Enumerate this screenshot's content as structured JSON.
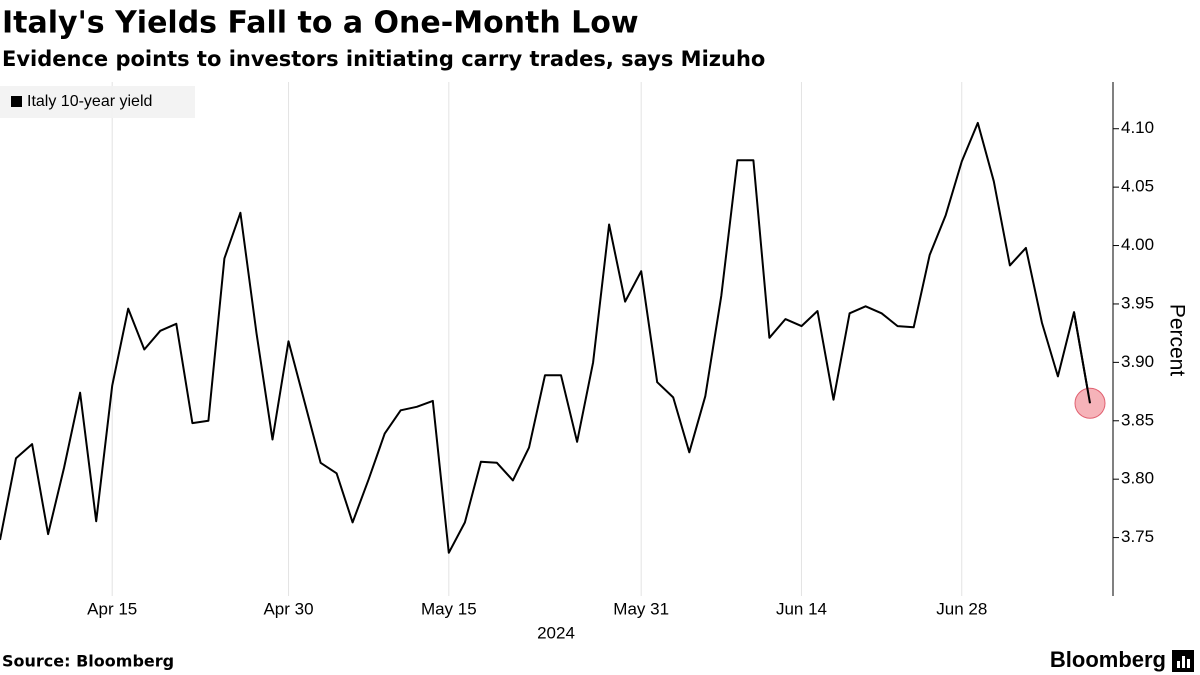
{
  "chart_data": {
    "type": "line",
    "title": "Italy's Yields Fall to a One-Month Low",
    "subtitle": "Evidence points to investors initiating carry trades, says Mizuho",
    "y_axis_label": "Percent",
    "x_axis_label": "2024",
    "source": "Source: Bloomberg",
    "branding": "Bloomberg",
    "x": [
      "2024-04-04",
      "2024-04-05",
      "2024-04-08",
      "2024-04-09",
      "2024-04-10",
      "2024-04-11",
      "2024-04-12",
      "2024-04-15",
      "2024-04-16",
      "2024-04-17",
      "2024-04-18",
      "2024-04-19",
      "2024-04-22",
      "2024-04-23",
      "2024-04-24",
      "2024-04-25",
      "2024-04-26",
      "2024-04-29",
      "2024-04-30",
      "2024-05-02",
      "2024-05-03",
      "2024-05-06",
      "2024-05-07",
      "2024-05-08",
      "2024-05-09",
      "2024-05-10",
      "2024-05-13",
      "2024-05-14",
      "2024-05-15",
      "2024-05-16",
      "2024-05-17",
      "2024-05-20",
      "2024-05-21",
      "2024-05-22",
      "2024-05-23",
      "2024-05-24",
      "2024-05-27",
      "2024-05-28",
      "2024-05-29",
      "2024-05-30",
      "2024-05-31",
      "2024-06-03",
      "2024-06-04",
      "2024-06-05",
      "2024-06-06",
      "2024-06-07",
      "2024-06-10",
      "2024-06-11",
      "2024-06-12",
      "2024-06-13",
      "2024-06-14",
      "2024-06-17",
      "2024-06-18",
      "2024-06-19",
      "2024-06-20",
      "2024-06-21",
      "2024-06-24",
      "2024-06-25",
      "2024-06-26",
      "2024-06-27",
      "2024-06-28",
      "2024-07-01",
      "2024-07-02",
      "2024-07-03",
      "2024-07-04",
      "2024-07-05",
      "2024-07-08",
      "2024-07-09",
      "2024-07-10"
    ],
    "series": [
      {
        "name": "Italy 10-year yield",
        "color": "#000000",
        "values": [
          3.748,
          3.818,
          3.83,
          3.753,
          3.81,
          3.874,
          3.764,
          3.88,
          3.946,
          3.911,
          3.927,
          3.933,
          3.848,
          3.85,
          3.989,
          4.028,
          3.925,
          3.834,
          3.918,
          3.866,
          3.814,
          3.805,
          3.763,
          3.8,
          3.839,
          3.859,
          3.862,
          3.867,
          3.737,
          3.763,
          3.815,
          3.814,
          3.799,
          3.827,
          3.889,
          3.889,
          3.832,
          3.9,
          4.018,
          3.952,
          3.978,
          3.883,
          3.87,
          3.823,
          3.871,
          3.957,
          4.073,
          4.073,
          3.921,
          3.937,
          3.931,
          3.944,
          3.868,
          3.942,
          3.948,
          3.942,
          3.931,
          3.93,
          3.992,
          4.026,
          4.072,
          4.105,
          4.055,
          3.983,
          3.998,
          3.934,
          3.888,
          3.943,
          3.865
        ]
      }
    ],
    "highlight_color": "#f4a0a8",
    "xticks": [
      {
        "value": "2024-04-15",
        "label": "Apr 15"
      },
      {
        "value": "2024-04-30",
        "label": "Apr 30"
      },
      {
        "value": "2024-05-15",
        "label": "May 15"
      },
      {
        "value": "2024-05-31",
        "label": "May 31"
      },
      {
        "value": "2024-06-14",
        "label": "Jun 14"
      },
      {
        "value": "2024-06-28",
        "label": "Jun 28"
      }
    ],
    "ylim": [
      3.7,
      4.14
    ],
    "yticks": [
      {
        "value": 3.75,
        "label": "3.75"
      },
      {
        "value": 3.8,
        "label": "3.80"
      },
      3.85,
      {
        "value": 3.9,
        "label": "3.90"
      },
      3.95,
      {
        "value": 4.0,
        "label": "4.00"
      },
      4.05,
      {
        "value": 4.1,
        "label": "4.10"
      }
    ],
    "grid": "x",
    "legend": "top-left"
  }
}
